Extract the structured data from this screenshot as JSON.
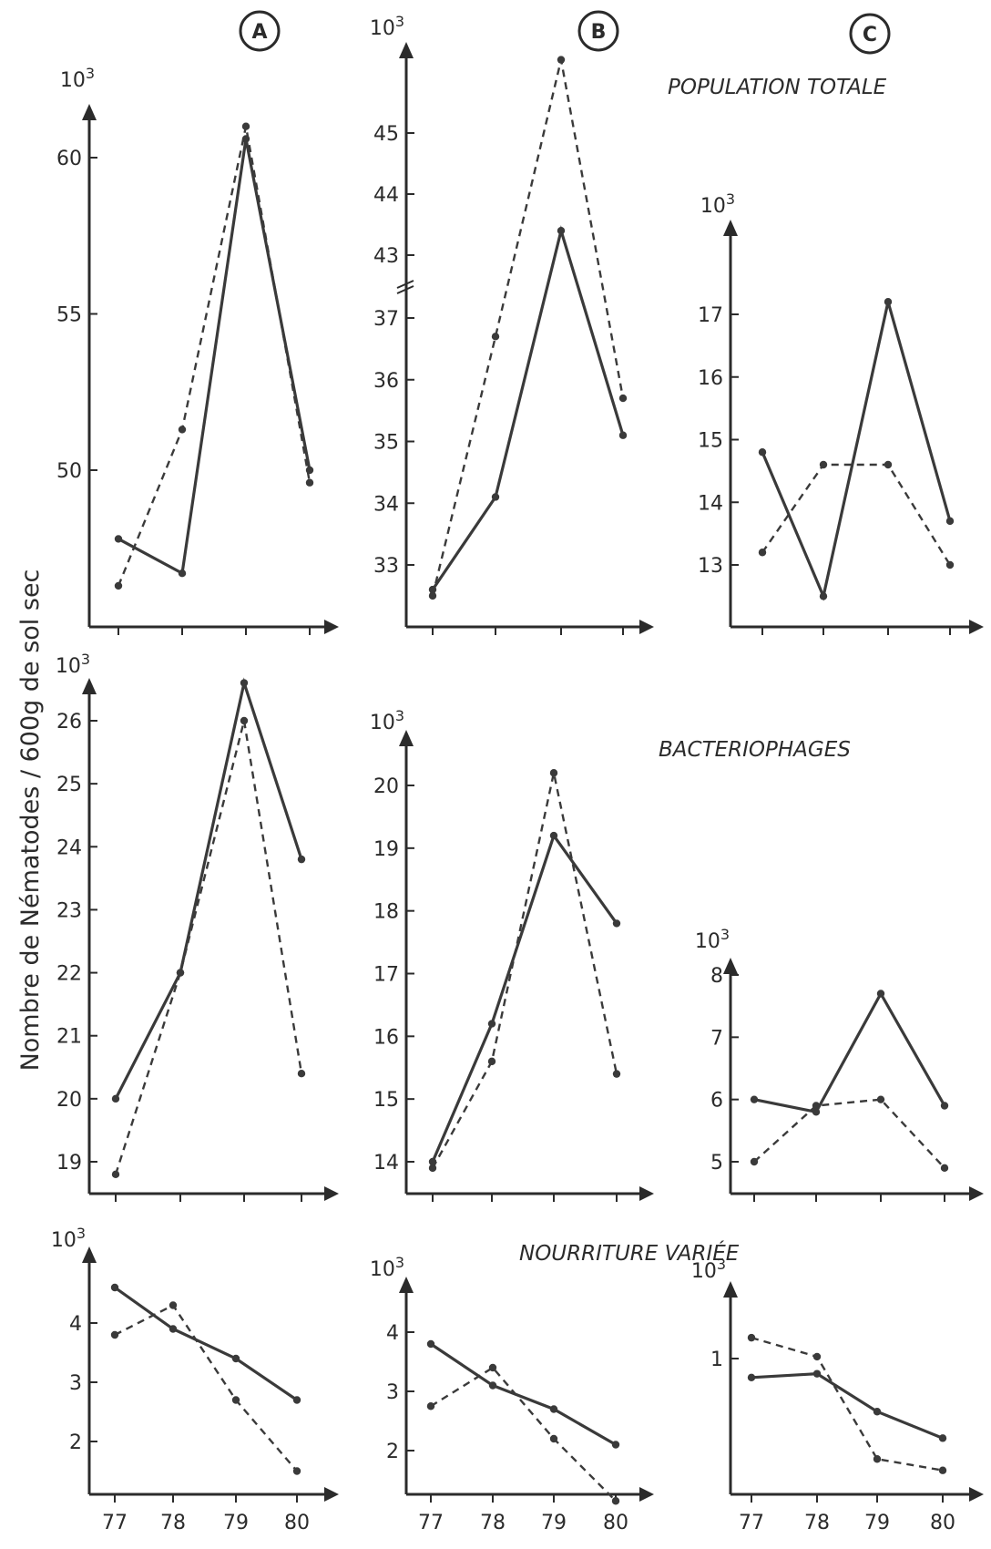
{
  "figure": {
    "ylabel": "Nombre de Nématodes / 600g de sol sec",
    "columns": [
      "A",
      "B",
      "C"
    ],
    "sections": [
      "POPULATION TOTALE",
      "BACTERIOPHAGES",
      "NOURRITURE VARIÉE"
    ],
    "exponent_label": "10",
    "exponent_sup": "3",
    "line_color": "#3a3a3a"
  },
  "chart_data": [
    {
      "type": "line",
      "section": "POPULATION TOTALE",
      "panel": "A",
      "categories": [
        "77",
        "78",
        "79",
        "80"
      ],
      "yticks": [
        "50",
        "55",
        "60"
      ],
      "ylim": [
        45,
        63
      ],
      "series": [
        {
          "style": "solid",
          "values": [
            47.8,
            46.7,
            60.6,
            50.0
          ]
        },
        {
          "style": "dashed",
          "values": [
            46.3,
            51.3,
            61.0,
            49.6
          ]
        }
      ]
    },
    {
      "type": "line",
      "section": "POPULATION TOTALE",
      "panel": "B",
      "categories": [
        "77",
        "78",
        "79",
        "80"
      ],
      "yticks": [
        "33",
        "34",
        "35",
        "36",
        "37",
        "43",
        "44",
        "45"
      ],
      "axis_break": "between 37 and 43",
      "ylim": [
        32,
        46
      ],
      "series": [
        {
          "style": "solid",
          "values": [
            32.6,
            34.1,
            43.4,
            35.1
          ]
        },
        {
          "style": "dashed",
          "values": [
            32.5,
            36.7,
            46.2,
            35.7
          ]
        }
      ]
    },
    {
      "type": "line",
      "section": "POPULATION TOTALE",
      "panel": "C",
      "categories": [
        "77",
        "78",
        "79",
        "80"
      ],
      "yticks": [
        "13",
        "14",
        "15",
        "16",
        "17"
      ],
      "ylim": [
        12,
        18
      ],
      "series": [
        {
          "style": "solid",
          "values": [
            14.8,
            12.5,
            17.2,
            13.7
          ]
        },
        {
          "style": "dashed",
          "values": [
            13.2,
            14.6,
            14.6,
            13.0
          ]
        }
      ]
    },
    {
      "type": "line",
      "section": "BACTERIOPHAGES",
      "panel": "A",
      "categories": [
        "77",
        "78",
        "79",
        "80"
      ],
      "yticks": [
        "19",
        "20",
        "21",
        "22",
        "23",
        "24",
        "25",
        "26"
      ],
      "ylim": [
        18.5,
        26.5
      ],
      "series": [
        {
          "style": "solid",
          "values": [
            20.0,
            22.0,
            26.6,
            23.8
          ]
        },
        {
          "style": "dashed",
          "values": [
            18.8,
            22.0,
            26.0,
            20.4
          ]
        }
      ]
    },
    {
      "type": "line",
      "section": "BACTERIOPHAGES",
      "panel": "B",
      "categories": [
        "77",
        "78",
        "79",
        "80"
      ],
      "yticks": [
        "14",
        "15",
        "16",
        "17",
        "18",
        "19",
        "20"
      ],
      "ylim": [
        13.5,
        20.5
      ],
      "series": [
        {
          "style": "solid",
          "values": [
            14.0,
            16.2,
            19.2,
            17.8
          ]
        },
        {
          "style": "dashed",
          "values": [
            13.9,
            15.6,
            20.2,
            15.4
          ]
        }
      ]
    },
    {
      "type": "line",
      "section": "BACTERIOPHAGES",
      "panel": "C",
      "categories": [
        "77",
        "78",
        "79",
        "80"
      ],
      "yticks": [
        "5",
        "6",
        "7",
        "8"
      ],
      "ylim": [
        4.5,
        8.0
      ],
      "series": [
        {
          "style": "solid",
          "values": [
            6.0,
            5.8,
            7.7,
            5.9
          ]
        },
        {
          "style": "dashed",
          "values": [
            5.0,
            5.9,
            6.0,
            4.9
          ]
        }
      ]
    },
    {
      "type": "line",
      "section": "NOURRITURE VARIÉE",
      "panel": "A",
      "categories": [
        "77",
        "78",
        "79",
        "80"
      ],
      "yticks": [
        "2",
        "3",
        "4"
      ],
      "ylim": [
        1,
        4.5
      ],
      "series": [
        {
          "style": "solid",
          "values": [
            4.6,
            3.9,
            3.4,
            2.7
          ]
        },
        {
          "style": "dashed",
          "values": [
            3.8,
            4.3,
            2.7,
            1.5
          ]
        }
      ]
    },
    {
      "type": "line",
      "section": "NOURRITURE VARIÉE",
      "panel": "B",
      "categories": [
        "77",
        "78",
        "79",
        "80"
      ],
      "yticks": [
        "2",
        "3",
        "4"
      ],
      "ylim": [
        1,
        4.3
      ],
      "series": [
        {
          "style": "solid",
          "values": [
            3.8,
            3.1,
            2.7,
            2.1
          ]
        },
        {
          "style": "dashed",
          "values": [
            2.75,
            3.4,
            2.2,
            1.15
          ]
        }
      ]
    },
    {
      "type": "line",
      "section": "NOURRITURE VARIÉE",
      "panel": "C",
      "categories": [
        "77",
        "78",
        "79",
        "80"
      ],
      "yticks": [
        "1"
      ],
      "ylim": [
        0.2,
        1.25
      ],
      "series": [
        {
          "style": "solid",
          "values": [
            0.9,
            0.92,
            0.72,
            0.58
          ]
        },
        {
          "style": "dashed",
          "values": [
            1.11,
            1.01,
            0.47,
            0.41
          ]
        }
      ]
    }
  ]
}
